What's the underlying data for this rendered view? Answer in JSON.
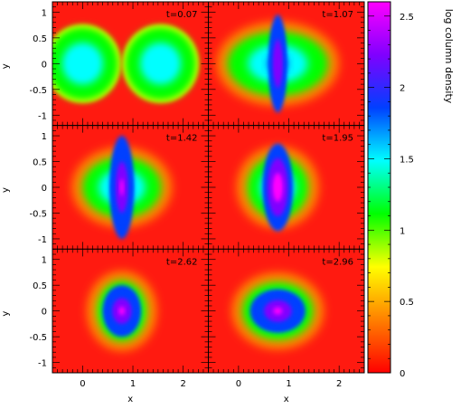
{
  "chart_data": {
    "type": "heatmap",
    "layout": "3 rows x 2 columns of panels sharing axes, with one vertical colorbar on the right",
    "xlabel": "x",
    "ylabel": "y",
    "xlim": [
      -0.6,
      2.5
    ],
    "ylim": [
      -1.2,
      1.2
    ],
    "x_ticks": [
      "0",
      "1",
      "2"
    ],
    "y_ticks": [
      "1",
      "0.5",
      "0",
      "-0.5",
      "-1"
    ],
    "colorbar": {
      "label": "log column density",
      "range": [
        0,
        2.6
      ],
      "ticks": [
        "0",
        "0.5",
        "1",
        "1.5",
        "2",
        "2.5"
      ],
      "colormap": [
        "#ff0000",
        "#ff8000",
        "#ffff00",
        "#00ff00",
        "#00ffff",
        "#0040ff",
        "#8000ff",
        "#ff00ff"
      ]
    },
    "background_color": "#ff1a10",
    "panels": [
      {
        "t_label": "t=0.07",
        "state": "two separate spheres",
        "peak_value": 1.6,
        "spheres": [
          {
            "cx": 0.0,
            "cy": 0.0,
            "r": 0.72
          },
          {
            "cx": 1.55,
            "cy": 0.0,
            "r": 0.72
          }
        ]
      },
      {
        "t_label": "t=1.07",
        "state": "collision with thin central spike",
        "peak_value": 2.3,
        "cloud": {
          "cx": 0.78,
          "cy": 0.0,
          "rx": 1.0,
          "ry": 0.62
        },
        "core": {
          "cx": 0.78,
          "cy": 0.0,
          "rx": 0.18,
          "ry": 0.95
        }
      },
      {
        "t_label": "t=1.42",
        "state": "compressed slab",
        "peak_value": 2.5,
        "cloud": {
          "cx": 0.78,
          "cy": 0.0,
          "rx": 0.78,
          "ry": 0.58
        },
        "core": {
          "cx": 0.78,
          "cy": 0.0,
          "rx": 0.24,
          "ry": 1.0
        }
      },
      {
        "t_label": "t=1.95",
        "state": "elongated core",
        "peak_value": 2.6,
        "cloud": {
          "cx": 0.78,
          "cy": 0.0,
          "rx": 0.6,
          "ry": 0.6
        },
        "core": {
          "cx": 0.78,
          "cy": 0.0,
          "rx": 0.3,
          "ry": 0.85
        }
      },
      {
        "t_label": "t=2.62",
        "state": "relaxing core",
        "peak_value": 2.5,
        "cloud": {
          "cx": 0.78,
          "cy": 0.0,
          "rx": 0.48,
          "ry": 0.58
        },
        "core": {
          "cx": 0.78,
          "cy": 0.0,
          "rx": 0.38,
          "ry": 0.5
        }
      },
      {
        "t_label": "t=2.96",
        "state": "flattened core",
        "peak_value": 2.5,
        "cloud": {
          "cx": 0.78,
          "cy": 0.0,
          "rx": 0.7,
          "ry": 0.55
        },
        "core": {
          "cx": 0.78,
          "cy": 0.0,
          "rx": 0.55,
          "ry": 0.42
        }
      }
    ]
  }
}
